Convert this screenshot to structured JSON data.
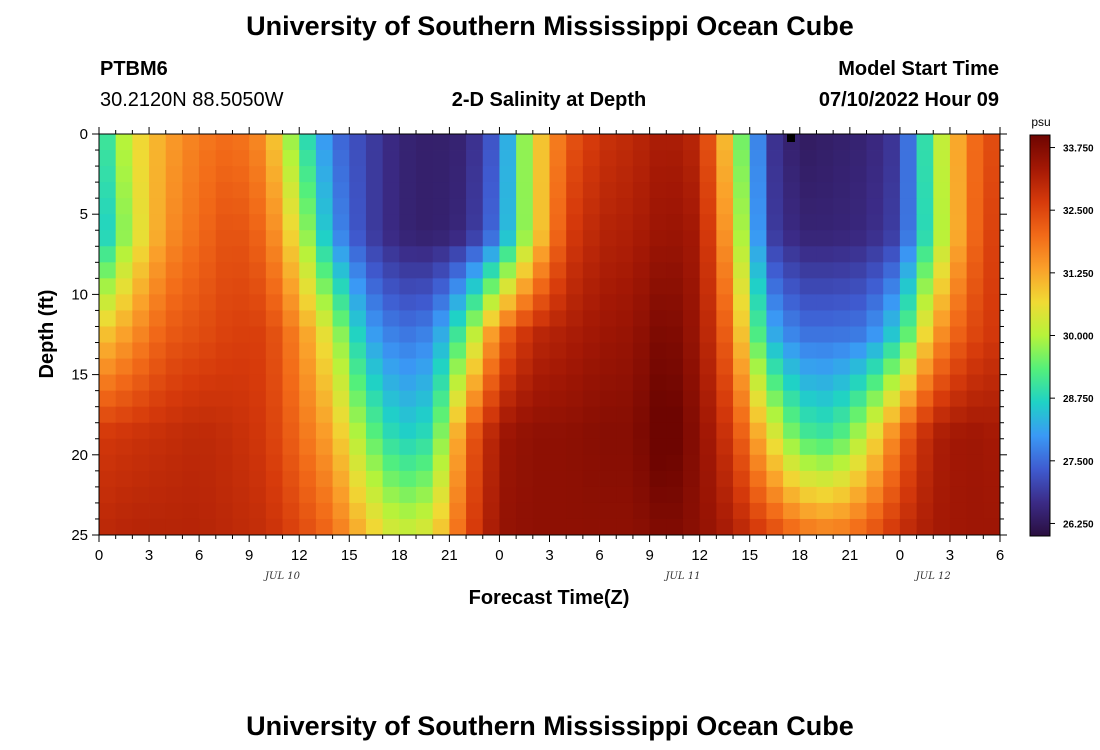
{
  "titles": {
    "main": "University of Southern Mississippi Ocean Cube",
    "footer": "University of Southern Mississippi Ocean Cube"
  },
  "station": {
    "id": "PTBM6",
    "coords": "30.2120N  88.5050W"
  },
  "model": {
    "label": "Model Start Time",
    "start": "07/10/2022 Hour 09"
  },
  "colorbar": {
    "unit": "psu",
    "min": 26.0,
    "max": 34.0,
    "ticks": [
      "33.750",
      "32.500",
      "31.250",
      "30.000",
      "28.750",
      "27.500",
      "26.250"
    ],
    "colors": [
      "#2a0e3f",
      "#3b2b86",
      "#3f5bd0",
      "#3a99f5",
      "#1fd2c6",
      "#54f07a",
      "#b6f33a",
      "#f0da34",
      "#faa02a",
      "#f26a18",
      "#d63a0b",
      "#a31805",
      "#6e0501"
    ]
  },
  "chart_data": {
    "type": "heatmap",
    "title": "2-D Salinity at Depth",
    "xlabel": "Forecast Time(Z)",
    "ylabel": "Depth (ft)",
    "x_hours_range": [
      0,
      54
    ],
    "ylim": [
      0,
      25
    ],
    "x_tick_labels": [
      "0",
      "3",
      "6",
      "9",
      "12",
      "15",
      "18",
      "21",
      "0",
      "3",
      "6",
      "9",
      "12",
      "15",
      "18",
      "21",
      "0",
      "3",
      "6"
    ],
    "y_tick_labels": [
      "0",
      "5",
      "10",
      "15",
      "20",
      "25"
    ],
    "date_labels": [
      {
        "hour": 11,
        "text": "JUL 10"
      },
      {
        "hour": 35,
        "text": "JUL 11"
      },
      {
        "hour": 50,
        "text": "JUL 12"
      }
    ],
    "depth_keys": [
      0,
      6.25,
      12.5,
      18.75,
      25
    ],
    "hour_keys": [
      0,
      2,
      4,
      6,
      8,
      10,
      12,
      14,
      16,
      18,
      20,
      22,
      24,
      26,
      28,
      30,
      32,
      34,
      36,
      38,
      40,
      42,
      44,
      46,
      48,
      50,
      52,
      54
    ],
    "salinity_psu": [
      [
        28.6,
        30.5,
        31.3,
        31.8,
        32.0,
        31.5,
        29.2,
        27.6,
        27.0,
        26.5,
        26.4,
        26.5,
        27.5,
        30.5,
        32.2,
        32.8,
        33.0,
        33.3,
        33.0,
        30.4,
        26.9,
        26.3,
        26.4,
        26.5,
        26.9,
        29.6,
        31.8,
        32.6
      ],
      [
        28.2,
        30.2,
        31.5,
        32.0,
        32.4,
        32.0,
        30.3,
        28.0,
        27.0,
        26.5,
        26.4,
        26.6,
        27.7,
        30.4,
        32.6,
        33.1,
        33.2,
        33.5,
        33.3,
        30.9,
        27.0,
        26.5,
        26.5,
        26.6,
        27.0,
        29.4,
        31.8,
        32.8
      ],
      [
        30.8,
        31.5,
        32.2,
        32.4,
        32.6,
        32.6,
        31.6,
        30.2,
        28.2,
        27.6,
        27.8,
        29.5,
        32.0,
        33.0,
        33.2,
        33.4,
        33.5,
        33.9,
        33.4,
        31.8,
        28.4,
        27.6,
        27.6,
        27.7,
        28.8,
        31.3,
        32.4,
        32.8
      ],
      [
        32.7,
        32.8,
        32.9,
        33.0,
        32.9,
        32.7,
        32.0,
        31.2,
        29.6,
        28.6,
        28.9,
        32.0,
        33.4,
        33.6,
        33.6,
        33.7,
        33.7,
        34.2,
        33.6,
        32.6,
        30.8,
        29.2,
        29.0,
        30.2,
        32.0,
        33.2,
        33.4,
        33.3
      ],
      [
        33.0,
        33.1,
        33.1,
        33.1,
        33.0,
        32.9,
        32.5,
        32.0,
        31.0,
        30.2,
        30.5,
        32.4,
        33.5,
        33.6,
        33.6,
        33.6,
        33.6,
        33.8,
        33.6,
        33.2,
        32.6,
        32.0,
        31.8,
        32.2,
        32.9,
        33.3,
        33.4,
        33.4
      ]
    ]
  }
}
